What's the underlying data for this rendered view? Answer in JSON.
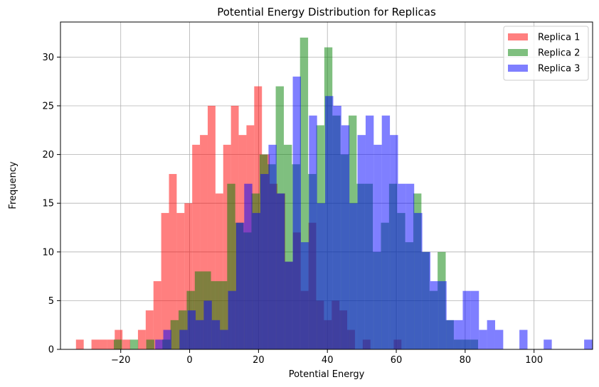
{
  "chart_data": {
    "type": "histogram",
    "title": "Potential Energy Distribution for Replicas",
    "xlabel": "Potential Energy",
    "ylabel": "Frequency",
    "xlim": [
      -37.5,
      117
    ],
    "ylim": [
      0,
      33.6
    ],
    "xticks": [
      -20,
      0,
      20,
      40,
      60,
      80,
      100
    ],
    "yticks": [
      0,
      5,
      10,
      15,
      20,
      25,
      30
    ],
    "grid": true,
    "legend_position": "top-right",
    "series": [
      {
        "name": "Replica 1",
        "color": "#ff0000",
        "opacity": 0.5,
        "bin_start": -33,
        "bin_width": 2.25,
        "counts": [
          1,
          0,
          1,
          1,
          1,
          2,
          1,
          0,
          2,
          4,
          7,
          14,
          18,
          14,
          15,
          21,
          22,
          25,
          16,
          21,
          25,
          22,
          23,
          27,
          20,
          17,
          16,
          9,
          12,
          6,
          13,
          5,
          3,
          5,
          4,
          2,
          0,
          1,
          0,
          0,
          0,
          1
        ]
      },
      {
        "name": "Replica 2",
        "color": "#008000",
        "opacity": 0.5,
        "bin_start": -22,
        "bin_width": 2.35,
        "counts": [
          1,
          0,
          1,
          0,
          1,
          0,
          1,
          3,
          4,
          6,
          8,
          8,
          7,
          7,
          17,
          13,
          12,
          16,
          20,
          19,
          27,
          21,
          19,
          32,
          18,
          23,
          31,
          24,
          20,
          24,
          17,
          17,
          10,
          13,
          17,
          14,
          11,
          16,
          10,
          6,
          10,
          3,
          1,
          1,
          1
        ]
      },
      {
        "name": "Replica 3",
        "color": "#0000ff",
        "opacity": 0.5,
        "bin_start": -10,
        "bin_width": 2.35,
        "counts": [
          1,
          2,
          0,
          2,
          4,
          3,
          5,
          3,
          2,
          6,
          13,
          17,
          14,
          18,
          21,
          16,
          9,
          28,
          11,
          24,
          15,
          26,
          25,
          23,
          15,
          22,
          24,
          21,
          24,
          22,
          17,
          17,
          14,
          10,
          7,
          7,
          3,
          3,
          6,
          6,
          2,
          3,
          2,
          0,
          0,
          2,
          0,
          0,
          1,
          0,
          0,
          0,
          0,
          1,
          0,
          0,
          1
        ]
      }
    ]
  }
}
